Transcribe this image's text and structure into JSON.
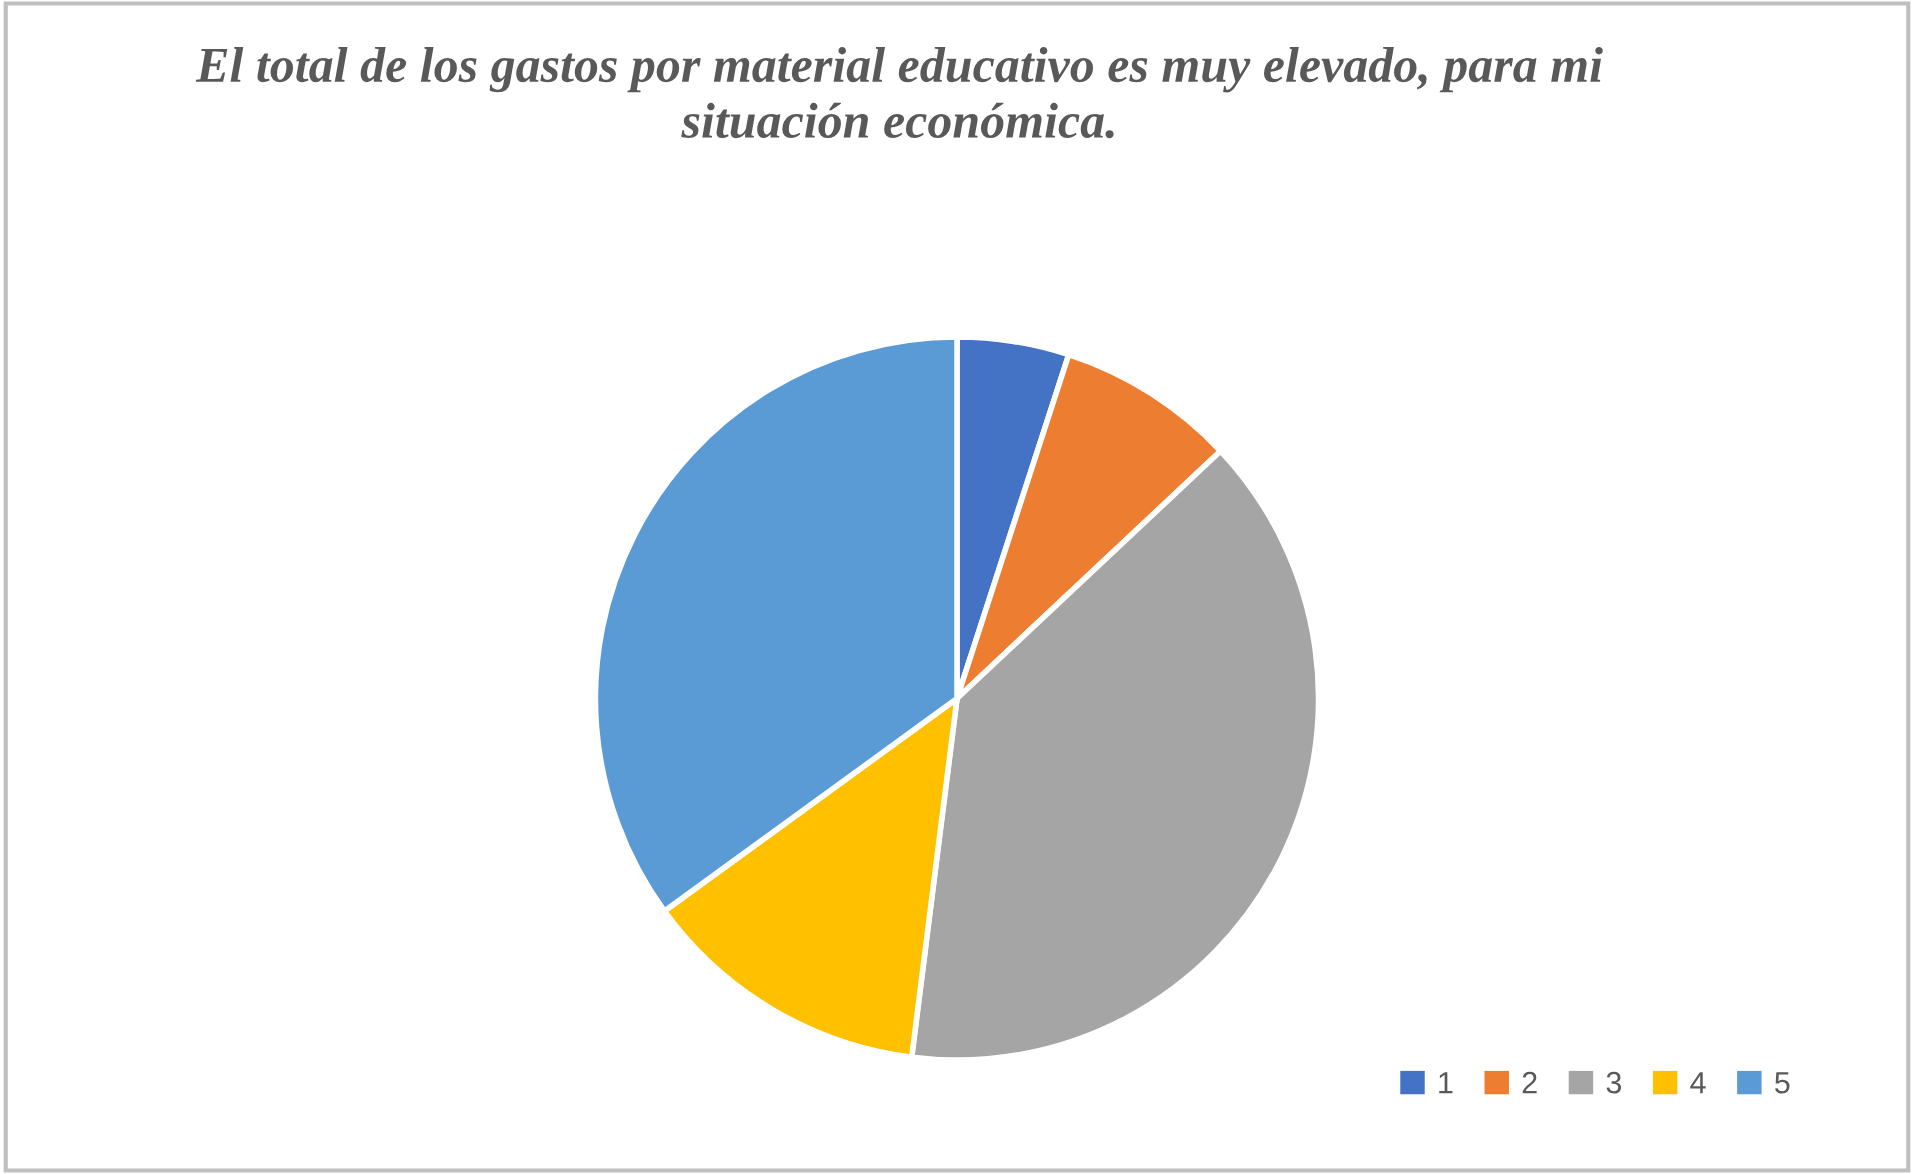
{
  "chart_data": {
    "type": "pie",
    "title": "El total de los gastos por material educativo es muy elevado, para mi\nsituación económica.",
    "categories": [
      "1",
      "2",
      "3",
      "4",
      "5"
    ],
    "values": [
      5,
      8,
      39,
      13,
      35
    ],
    "colors": [
      "#4472c4",
      "#ed7d31",
      "#a5a5a5",
      "#ffc000",
      "#5b9bd5"
    ],
    "legend": "bottom right"
  }
}
